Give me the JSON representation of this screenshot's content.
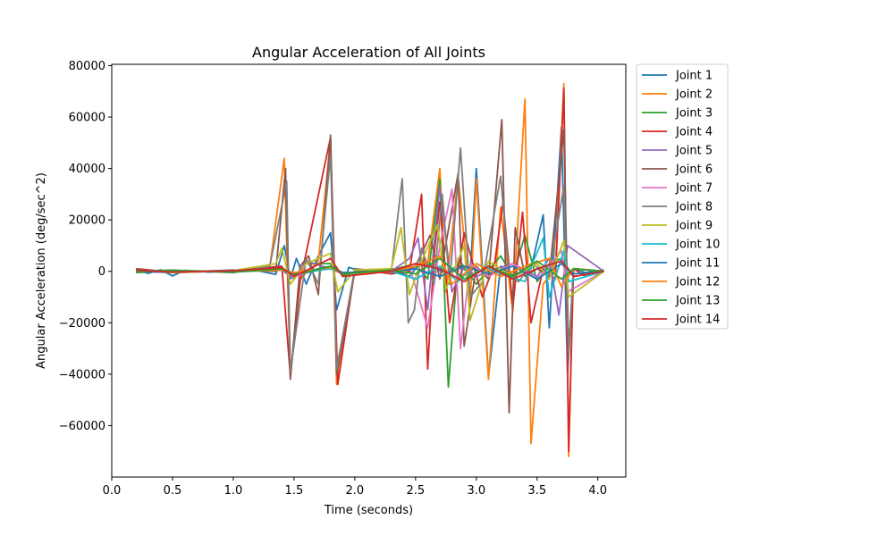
{
  "chart_data": {
    "type": "line",
    "title": "Angular Acceleration of All Joints",
    "xlabel": "Time (seconds)",
    "ylabel": "Angular Acceleration (deg/sec^2)",
    "xlim": [
      0.0,
      4.23
    ],
    "ylim": [
      -80000,
      80500
    ],
    "xticks": [
      0.0,
      0.5,
      1.0,
      1.5,
      2.0,
      2.5,
      3.0,
      3.5,
      4.0
    ],
    "xtick_labels": [
      "0.0",
      "0.5",
      "1.0",
      "1.5",
      "2.0",
      "2.5",
      "3.0",
      "3.5",
      "4.0"
    ],
    "yticks": [
      -60000,
      -40000,
      -20000,
      0,
      20000,
      40000,
      60000,
      80000
    ],
    "ytick_labels": [
      "−60000",
      "−40000",
      "−20000",
      "0",
      "20000",
      "40000",
      "60000",
      "80000"
    ],
    "grid": false,
    "legend_position": "outside-top-right",
    "series": [
      {
        "name": "Joint 1",
        "color": "#1f77b4",
        "x": [
          0.2,
          0.3,
          0.4,
          0.5,
          0.6,
          0.8,
          1.0,
          1.2,
          1.35,
          1.42,
          1.47,
          1.52,
          1.6,
          1.7,
          1.8,
          1.85,
          1.95,
          2.1,
          2.3,
          2.45,
          2.55,
          2.65,
          2.75,
          2.85,
          2.95,
          3.0,
          3.05,
          3.1,
          3.2,
          3.3,
          3.45,
          3.55,
          3.6,
          3.7,
          3.75,
          3.8,
          3.9,
          4.05
        ],
        "y": [
          500,
          -800,
          600,
          -1800,
          400,
          -300,
          200,
          300,
          -1200,
          10000,
          -3000,
          5000,
          -5000,
          6000,
          15000,
          -15000,
          1500,
          -500,
          1000,
          -2000,
          4000,
          1500,
          -1000,
          2500,
          -1000,
          40000,
          1000,
          -41000,
          2000,
          -2000,
          1000,
          22000,
          -22000,
          56000,
          -40000,
          1000,
          -500,
          500
        ]
      },
      {
        "name": "Joint 2",
        "color": "#ff7f0e",
        "x": [
          0.2,
          0.5,
          1.0,
          1.3,
          1.42,
          1.47,
          1.55,
          1.7,
          1.8,
          1.85,
          2.0,
          2.4,
          2.6,
          2.7,
          2.75,
          2.85,
          2.95,
          3.0,
          3.1,
          3.2,
          3.3,
          3.4,
          3.45,
          3.55,
          3.65,
          3.72,
          3.76,
          3.8,
          4.05
        ],
        "y": [
          0,
          200,
          -200,
          1500,
          44000,
          -41000,
          -3000,
          4000,
          51000,
          -44000,
          500,
          1000,
          3000,
          40000,
          -8000,
          37000,
          -12000,
          36000,
          -42000,
          25000,
          -16000,
          67000,
          -67000,
          -5000,
          1000,
          73000,
          -72000,
          1000,
          0
        ]
      },
      {
        "name": "Joint 3",
        "color": "#2ca02c",
        "x": [
          0.2,
          0.5,
          1.0,
          1.4,
          1.5,
          1.6,
          1.8,
          1.9,
          2.3,
          2.5,
          2.6,
          2.7,
          2.77,
          2.85,
          3.0,
          3.2,
          3.3,
          3.4,
          3.5,
          3.6,
          3.7,
          3.8,
          4.05
        ],
        "y": [
          -500,
          300,
          0,
          1000,
          -2000,
          3000,
          3000,
          -1500,
          500,
          3000,
          -3000,
          36000,
          -45000,
          5000,
          -5000,
          6000,
          -2000,
          14000,
          -4000,
          3000,
          5000,
          -2000,
          0
        ]
      },
      {
        "name": "Joint 4",
        "color": "#d62728",
        "x": [
          0.2,
          0.5,
          1.0,
          1.4,
          1.47,
          1.55,
          1.8,
          1.86,
          2.0,
          2.3,
          2.45,
          2.55,
          2.6,
          2.65,
          2.7,
          2.78,
          2.9,
          3.05,
          3.15,
          3.22,
          3.3,
          3.38,
          3.45,
          3.55,
          3.65,
          3.72,
          3.76,
          3.8,
          3.9,
          4.05
        ],
        "y": [
          1000,
          -500,
          300,
          2000,
          -41000,
          -4000,
          52000,
          -44000,
          1000,
          -1000,
          0,
          30000,
          -38000,
          5000,
          27000,
          -20000,
          15000,
          -10000,
          3000,
          27000,
          -14000,
          23000,
          -20000,
          1000,
          -3000,
          71000,
          -70000,
          1000,
          -2000,
          0
        ]
      },
      {
        "name": "Joint 5",
        "color": "#9467bd",
        "x": [
          0.2,
          0.5,
          1.0,
          1.4,
          1.5,
          1.6,
          1.8,
          1.9,
          2.3,
          2.45,
          2.52,
          2.6,
          2.7,
          2.8,
          2.9,
          3.0,
          3.1,
          3.3,
          3.5,
          3.6,
          3.68,
          3.75,
          4.05
        ],
        "y": [
          0,
          -500,
          200,
          500,
          -3000,
          4000,
          1000,
          -1000,
          0,
          5000,
          13000,
          -15000,
          33000,
          -8000,
          2000,
          -2000,
          0,
          3000,
          -2000,
          5000,
          -17000,
          10000,
          0
        ]
      },
      {
        "name": "Joint 6",
        "color": "#8c564b",
        "x": [
          0.2,
          0.5,
          1.0,
          1.35,
          1.43,
          1.47,
          1.55,
          1.62,
          1.7,
          1.8,
          1.85,
          2.0,
          2.4,
          2.5,
          2.62,
          2.7,
          2.85,
          2.9,
          3.0,
          3.1,
          3.21,
          3.27,
          3.32,
          3.4,
          3.5,
          3.6,
          3.72,
          3.76,
          3.8,
          4.05
        ],
        "y": [
          1000,
          -300,
          500,
          0,
          40000,
          -42000,
          2000,
          6000,
          -9000,
          53000,
          -40000,
          0,
          -500,
          2000,
          14000,
          -3000,
          38000,
          -29000,
          2000,
          -3000,
          59000,
          -55000,
          17000,
          -2000,
          1000,
          -2000,
          55000,
          -32000,
          1000,
          0
        ]
      },
      {
        "name": "Joint 7",
        "color": "#e377c2",
        "x": [
          0.2,
          0.5,
          1.0,
          1.4,
          1.5,
          1.8,
          1.9,
          2.3,
          2.45,
          2.6,
          2.7,
          2.8,
          2.87,
          2.95,
          3.1,
          3.3,
          3.5,
          3.6,
          3.7,
          3.75,
          4.05
        ],
        "y": [
          0,
          300,
          -200,
          1000,
          -2000,
          2000,
          -1000,
          0,
          2000,
          -22000,
          10000,
          32000,
          -30000,
          3000,
          -2000,
          3000,
          -3000,
          2000,
          8000,
          -8000,
          0
        ]
      },
      {
        "name": "Joint 8",
        "color": "#7f7f7f",
        "x": [
          0.2,
          0.5,
          1.0,
          1.3,
          1.44,
          1.47,
          1.6,
          1.7,
          1.8,
          1.85,
          2.0,
          2.3,
          2.39,
          2.44,
          2.49,
          2.55,
          2.65,
          2.72,
          2.78,
          2.87,
          2.95,
          3.05,
          3.2,
          3.27,
          3.35,
          3.45,
          3.6,
          3.72,
          3.76,
          3.8,
          4.05
        ],
        "y": [
          0,
          500,
          -500,
          2000,
          35000,
          -39000,
          5000,
          -5000,
          45000,
          -38000,
          1000,
          -500,
          36000,
          -20000,
          -15000,
          9000,
          -5000,
          30000,
          -5000,
          48000,
          -10000,
          -4000,
          37000,
          -2000,
          -4000,
          3000,
          -1000,
          33000,
          -34000,
          1000,
          0
        ]
      },
      {
        "name": "Joint 9",
        "color": "#bcbd22",
        "x": [
          0.2,
          0.5,
          1.0,
          1.35,
          1.4,
          1.47,
          1.6,
          1.8,
          1.86,
          2.0,
          2.3,
          2.38,
          2.45,
          2.55,
          2.68,
          2.75,
          2.9,
          2.95,
          3.1,
          3.3,
          3.5,
          3.6,
          3.72,
          3.76,
          4.05
        ],
        "y": [
          500,
          -500,
          300,
          3000,
          9000,
          -5000,
          3000,
          7000,
          -8000,
          500,
          1000,
          17000,
          -9000,
          4000,
          18000,
          -7000,
          10000,
          -19000,
          4000,
          -2000,
          3000,
          -3000,
          12000,
          -10000,
          0
        ]
      },
      {
        "name": "Joint 10",
        "color": "#17becf",
        "x": [
          0.2,
          0.5,
          1.0,
          1.4,
          1.5,
          1.8,
          1.9,
          2.3,
          2.5,
          2.7,
          2.85,
          3.0,
          3.2,
          3.4,
          3.55,
          3.6,
          3.72,
          3.76,
          4.05
        ],
        "y": [
          0,
          200,
          -200,
          500,
          -1000,
          1000,
          -500,
          0,
          -3000,
          2000,
          -4000,
          3000,
          -1000,
          -4000,
          13000,
          -10000,
          8000,
          -4000,
          0
        ]
      },
      {
        "name": "Joint 11",
        "color": "#1f77b4",
        "x": [
          0.2,
          0.5,
          1.0,
          1.4,
          1.5,
          1.8,
          1.9,
          2.3,
          2.5,
          2.7,
          2.9,
          3.1,
          3.3,
          3.5,
          3.7,
          3.8,
          4.05
        ],
        "y": [
          0,
          -300,
          300,
          1000,
          -1000,
          2000,
          -500,
          0,
          1000,
          -2000,
          2000,
          -1000,
          2000,
          -3000,
          3000,
          -1000,
          0
        ]
      },
      {
        "name": "Joint 12",
        "color": "#ff7f0e",
        "x": [
          0.2,
          0.5,
          1.0,
          1.4,
          1.5,
          1.8,
          1.9,
          2.3,
          2.5,
          2.7,
          2.8,
          3.0,
          3.2,
          3.4,
          3.6,
          3.7,
          3.8,
          4.05
        ],
        "y": [
          0,
          200,
          -100,
          500,
          -500,
          1500,
          -1000,
          0,
          2000,
          6000,
          -5000,
          3000,
          -2000,
          2000,
          5000,
          -6000,
          1000,
          0
        ]
      },
      {
        "name": "Joint 13",
        "color": "#2ca02c",
        "x": [
          0.2,
          0.5,
          1.0,
          1.4,
          1.5,
          1.8,
          1.9,
          2.3,
          2.5,
          2.7,
          2.9,
          3.1,
          3.3,
          3.5,
          3.7,
          3.8,
          4.05
        ],
        "y": [
          0,
          300,
          -300,
          1000,
          -1500,
          2000,
          -1000,
          500,
          -1000,
          5000,
          -3000,
          2000,
          -2000,
          4000,
          -3000,
          1000,
          0
        ]
      },
      {
        "name": "Joint 14",
        "color": "#d62728",
        "x": [
          0.2,
          0.5,
          1.0,
          1.4,
          1.5,
          1.8,
          1.9,
          2.3,
          2.5,
          2.7,
          2.9,
          3.1,
          3.3,
          3.5,
          3.7,
          3.8,
          4.05
        ],
        "y": [
          500,
          -300,
          200,
          1500,
          -2000,
          5000,
          -2000,
          0,
          3000,
          1000,
          -4000,
          2000,
          -3000,
          1000,
          4000,
          -2000,
          0
        ]
      }
    ]
  }
}
